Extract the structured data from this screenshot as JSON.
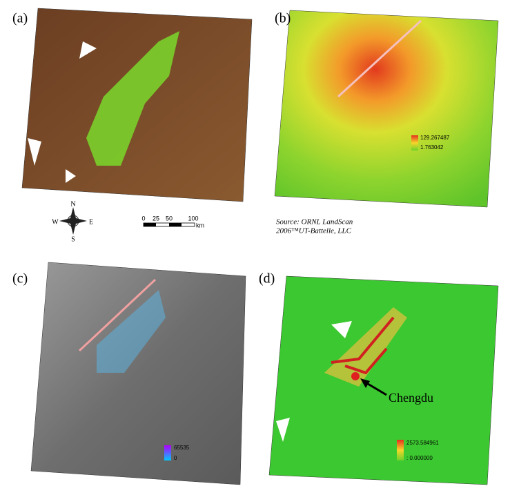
{
  "panels": [
    {
      "label": "(a)"
    },
    {
      "label": "(b)",
      "legend": {
        "max": "129.267487",
        "min": "1.763042"
      }
    },
    {
      "label": "(c)",
      "legend": {
        "max": "65535",
        "min": "0"
      }
    },
    {
      "label": "(d)",
      "legend": {
        "max": "2573.584961",
        "min": ": 0.000000"
      },
      "annotation": "Chengdu"
    }
  ],
  "compass": {
    "north": "N",
    "south": "S",
    "east": "E",
    "west": "W"
  },
  "scale_bar": {
    "ticks": [
      "0",
      "25",
      "50",
      "100"
    ],
    "unit": "km"
  },
  "source": [
    "Source: ORNL LandScan",
    "2006™UT-Battelle, LLC"
  ]
}
